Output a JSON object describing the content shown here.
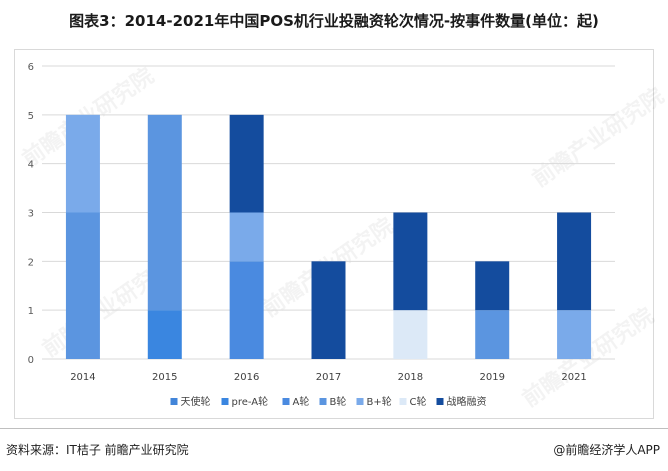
{
  "title": "图表3：2014-2021年中国POS机行业投融资轮次情况-按事件数量(单位：起)",
  "source": "资料来源：IT桔子 前瞻产业研究院",
  "brand": "@前瞻经济学人APP",
  "watermark": "前瞻产业研究院",
  "chart_data": {
    "type": "bar",
    "stacked": true,
    "title": "图表3：2014-2021年中国POS机行业投融资轮次情况-按事件数量(单位：起)",
    "xlabel": "",
    "ylabel": "",
    "ylim": [
      0,
      6
    ],
    "yticks": [
      0,
      1,
      2,
      3,
      4,
      5,
      6
    ],
    "grid": true,
    "legend_position": "bottom",
    "categories": [
      "2014",
      "2015",
      "2016",
      "2017",
      "2018",
      "2019",
      "2021"
    ],
    "series": [
      {
        "name": "天使轮",
        "color": "#4285d9",
        "values": [
          0,
          0,
          0,
          0,
          0,
          0,
          0
        ]
      },
      {
        "name": "pre-A轮",
        "color": "#3a86e0",
        "values": [
          0,
          1,
          0,
          0,
          0,
          0,
          0
        ]
      },
      {
        "name": "A轮",
        "color": "#4a8ae0",
        "values": [
          0,
          0,
          2,
          0,
          0,
          0,
          0
        ]
      },
      {
        "name": "B轮",
        "color": "#5b95e0",
        "values": [
          3,
          4,
          0,
          0,
          0,
          1,
          0
        ]
      },
      {
        "name": "B+轮",
        "color": "#7aaaea",
        "values": [
          2,
          0,
          1,
          0,
          0,
          0,
          1
        ]
      },
      {
        "name": "C轮",
        "color": "#dce9f7",
        "values": [
          0,
          0,
          0,
          0,
          1,
          0,
          0
        ]
      },
      {
        "name": "战略融资",
        "color": "#144c9e",
        "values": [
          0,
          0,
          2,
          2,
          2,
          1,
          2
        ]
      }
    ]
  }
}
